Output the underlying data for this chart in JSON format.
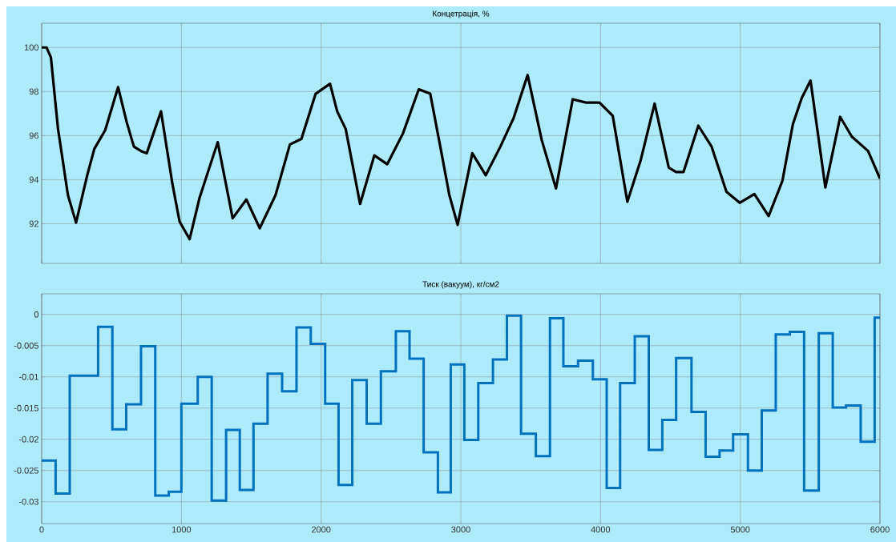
{
  "chart_data": [
    {
      "type": "line",
      "title": "Концетрація, %",
      "xlim": [
        0,
        6000
      ],
      "xticks": [
        0,
        1000,
        2000,
        3000,
        4000,
        5000,
        6000
      ],
      "ylim": [
        90.2,
        101.1
      ],
      "yticks": [
        92,
        94,
        96,
        98,
        100
      ],
      "grid": true,
      "tick_labels": "y",
      "series": [
        {
          "color": "#000000",
          "x": [
            0,
            35,
            66,
            117,
            188,
            246,
            326,
            377,
            455,
            547,
            609,
            660,
            711,
            752,
            854,
            936,
            987,
            1059,
            1131,
            1260,
            1367,
            1465,
            1561,
            1674,
            1777,
            1859,
            1961,
            2064,
            2115,
            2176,
            2279,
            2381,
            2473,
            2586,
            2699,
            2781,
            2853,
            2918,
            2977,
            3082,
            3178,
            3283,
            3378,
            3478,
            3579,
            3681,
            3801,
            3896,
            3992,
            4087,
            4192,
            4288,
            4387,
            4488,
            4541,
            4594,
            4700,
            4795,
            4901,
            4996,
            5101,
            5203,
            5302,
            5376,
            5440,
            5503,
            5609,
            5715,
            5799,
            5915,
            6000
          ],
          "values": [
            100,
            100,
            99.55,
            96.3,
            93.3,
            92.05,
            94.2,
            95.4,
            96.25,
            98.2,
            96.6,
            95.5,
            95.3,
            95.2,
            97.1,
            93.8,
            92.1,
            91.3,
            93.2,
            95.7,
            92.25,
            93.1,
            91.8,
            93.3,
            95.6,
            95.85,
            97.9,
            98.35,
            97.1,
            96.3,
            92.9,
            95.1,
            94.7,
            96.1,
            98.1,
            97.9,
            95.5,
            93.3,
            91.95,
            95.2,
            94.2,
            95.5,
            96.8,
            98.75,
            95.8,
            93.6,
            97.65,
            97.5,
            97.5,
            96.9,
            93.0,
            94.9,
            97.45,
            94.55,
            94.35,
            94.35,
            96.45,
            95.5,
            93.45,
            92.95,
            93.35,
            92.35,
            93.95,
            96.5,
            97.7,
            98.5,
            93.65,
            96.85,
            95.95,
            95.3,
            94.05
          ]
        }
      ]
    },
    {
      "type": "step",
      "title": "Тиск (вакуум), кг/см2",
      "xlim": [
        0,
        6000
      ],
      "xticks": [
        0,
        1000,
        2000,
        3000,
        4000,
        5000,
        6000
      ],
      "ylim": [
        -0.0335,
        0.0033
      ],
      "yticks": [
        -0.03,
        -0.025,
        -0.02,
        -0.015,
        -0.01,
        -0.005,
        0
      ],
      "grid": true,
      "series": [
        {
          "color": "#0072bd",
          "x": [
            0,
            100,
            201,
            404,
            506,
            605,
            711,
            813,
            910,
            1000,
            1117,
            1217,
            1320,
            1418,
            1516,
            1617,
            1721,
            1824,
            1926,
            2029,
            2125,
            2223,
            2326,
            2428,
            2535,
            2633,
            2734,
            2836,
            2928,
            3025,
            3125,
            3230,
            3330,
            3431,
            3537,
            3638,
            3734,
            3839,
            3945,
            4044,
            4140,
            4245,
            4345,
            4442,
            4541,
            4651,
            4752,
            4852,
            4949,
            5055,
            5154,
            5254,
            5355,
            5457,
            5562,
            5662,
            5757,
            5862,
            5962,
            6000
          ],
          "values": [
            -0.0234,
            -0.0287,
            -0.0098,
            -0.002,
            -0.0184,
            -0.0144,
            -0.0051,
            -0.029,
            -0.0284,
            -0.0143,
            -0.01,
            -0.0298,
            -0.0185,
            -0.0281,
            -0.0175,
            -0.0095,
            -0.0123,
            -0.0021,
            -0.0047,
            -0.0143,
            -0.0273,
            -0.0105,
            -0.0175,
            -0.0091,
            -0.0027,
            -0.0071,
            -0.0221,
            -0.0285,
            -0.008,
            -0.0201,
            -0.011,
            -0.0072,
            -0.0002,
            -0.0191,
            -0.0227,
            -0.0006,
            -0.0083,
            -0.0074,
            -0.0104,
            -0.0278,
            -0.011,
            -0.0035,
            -0.0217,
            -0.0169,
            -0.007,
            -0.0156,
            -0.0228,
            -0.0218,
            -0.0192,
            -0.025,
            -0.0154,
            -0.0032,
            -0.0028,
            -0.0282,
            -0.003,
            -0.0149,
            -0.0146,
            -0.0204,
            -0.0005,
            -0.0005
          ]
        }
      ]
    }
  ]
}
